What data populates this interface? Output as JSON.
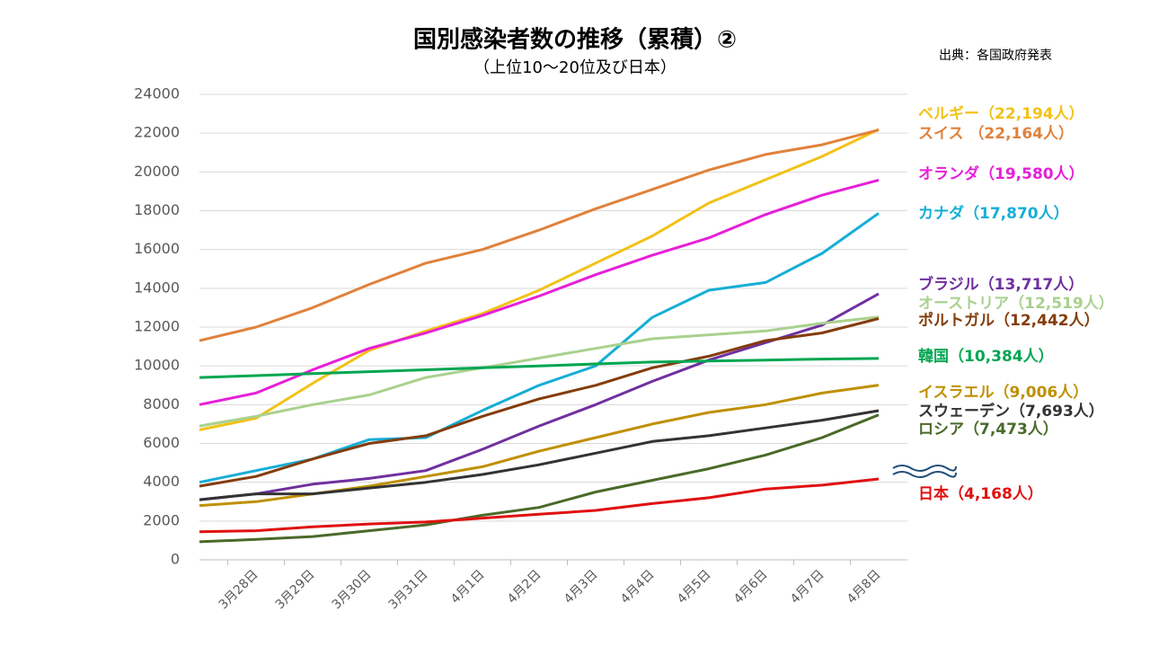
{
  "chart_data": {
    "type": "line",
    "title": "国別感染者数の推移（累積）②",
    "subtitle": "（上位10～20位及び日本）",
    "source": "出典：各国政府発表",
    "categories": [
      null,
      "3月28日",
      "3月29日",
      "3月30日",
      "3月31日",
      "4月1日",
      "4月2日",
      "4月3日",
      "4月4日",
      "4月5日",
      "4月6日",
      "4月7日",
      "4月8日"
    ],
    "ylim": [
      0,
      24000
    ],
    "yticks": [
      0,
      2000,
      4000,
      6000,
      8000,
      10000,
      12000,
      14000,
      16000,
      18000,
      20000,
      22000,
      24000
    ],
    "grid": true,
    "series": [
      {
        "name": "ベルギー（22,194人）",
        "color": "#f2c218",
        "values": [
          6700,
          7300,
          9100,
          10800,
          11800,
          12700,
          13900,
          15300,
          16700,
          18400,
          19600,
          20800,
          22194
        ]
      },
      {
        "name": "スイス （22,164人）",
        "color": "#e0823c",
        "values": [
          11300,
          12000,
          13000,
          14200,
          15300,
          16000,
          17000,
          18100,
          19100,
          20100,
          20900,
          21400,
          22164
        ]
      },
      {
        "name": "オランダ（19,580人）",
        "color": "#e620d8",
        "values": [
          8000,
          8600,
          9800,
          10900,
          11700,
          12600,
          13600,
          14700,
          15700,
          16600,
          17800,
          18800,
          19580
        ]
      },
      {
        "name": "カナダ（17,870人）",
        "color": "#16aed6",
        "values": [
          4000,
          4600,
          5200,
          6200,
          6300,
          7700,
          9000,
          10000,
          12500,
          13900,
          14300,
          15800,
          17870
        ]
      },
      {
        "name": "ブラジル（13,717人）",
        "color": "#7030a0",
        "values": [
          3100,
          3400,
          3900,
          4200,
          4600,
          5700,
          6900,
          8000,
          9200,
          10300,
          11200,
          12100,
          13717
        ]
      },
      {
        "name": "オーストリア（12,519人）",
        "color": "#a9d18e",
        "values": [
          6900,
          7400,
          8000,
          8500,
          9400,
          9900,
          10400,
          10900,
          11400,
          11600,
          11800,
          12200,
          12519
        ]
      },
      {
        "name": "ポルトガル（12,442人）",
        "color": "#843c0c",
        "values": [
          3800,
          4300,
          5200,
          6000,
          6400,
          7400,
          8300,
          9000,
          9900,
          10500,
          11300,
          11700,
          12442
        ]
      },
      {
        "name": "韓国（10,384人）",
        "color": "#00a651",
        "values": [
          9400,
          9500,
          9600,
          9700,
          9800,
          9900,
          10000,
          10100,
          10200,
          10250,
          10300,
          10350,
          10384
        ]
      },
      {
        "name": "イスラエル（9,006人）",
        "color": "#bf9000",
        "values": [
          2800,
          3000,
          3400,
          3800,
          4300,
          4800,
          5600,
          6300,
          7000,
          7600,
          8000,
          8600,
          9006
        ]
      },
      {
        "name": "スウェーデン（7,693人）",
        "color": "#333333",
        "values": [
          3100,
          3400,
          3400,
          3700,
          4000,
          4400,
          4900,
          5500,
          6100,
          6400,
          6800,
          7200,
          7693
        ]
      },
      {
        "name": "ロシア（7,473人）",
        "color": "#4a6a2a",
        "values": [
          930,
          1050,
          1200,
          1500,
          1800,
          2300,
          2700,
          3500,
          4100,
          4700,
          5400,
          6300,
          7473
        ]
      },
      {
        "name": "日本（4,168人）",
        "color": "#e01010",
        "values": [
          1450,
          1500,
          1700,
          1850,
          1950,
          2150,
          2350,
          2550,
          2900,
          3200,
          3650,
          3850,
          4168
        ]
      }
    ]
  }
}
